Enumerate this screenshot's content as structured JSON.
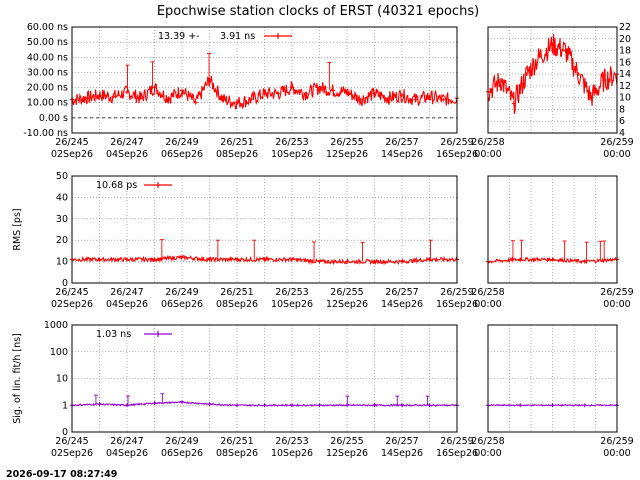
{
  "title": "Epochwise station clocks of ERST (40321 epochs)",
  "timestamp": "2026-09-17 08:27:49",
  "colors": {
    "clock": "#ff0000",
    "rms": "#ff0000",
    "sig": "#9400d3",
    "grid": "#808080"
  },
  "chart_data": [
    {
      "type": "line",
      "panel": "clock-main",
      "ylabel": "",
      "ylim": [
        -10,
        60
      ],
      "yticks": [
        "60.00 ns",
        "50.00 ns",
        "40.00 ns",
        "30.00 ns",
        "20.00 ns",
        "10.00 ns",
        "0.00  s",
        "-10.00 ns"
      ],
      "ytick_values": [
        60,
        50,
        40,
        30,
        20,
        10,
        0,
        -10
      ],
      "xlim": [
        245,
        259
      ],
      "xticks_top": [
        "26/245",
        "26/247",
        "26/249",
        "26/251",
        "26/253",
        "26/255",
        "26/257",
        "26/259"
      ],
      "xticks_bottom": [
        "02Sep26",
        "04Sep26",
        "06Sep26",
        "08Sep26",
        "10Sep26",
        "12Sep26",
        "14Sep26",
        "16Sep26"
      ],
      "legend": {
        "label": "13.39 +-",
        "value": "3.91 ns"
      },
      "x": [
        245.0,
        245.5,
        246.0,
        246.5,
        247.0,
        247.5,
        248.0,
        248.5,
        249.0,
        249.5,
        250.0,
        250.5,
        251.0,
        251.5,
        252.0,
        252.5,
        253.0,
        253.5,
        254.0,
        254.5,
        255.0,
        255.5,
        256.0,
        256.5,
        257.0,
        257.5,
        258.0,
        258.5,
        259.0
      ],
      "values": [
        12,
        13,
        15,
        14,
        17,
        13,
        20,
        13,
        18,
        10,
        25,
        12,
        10,
        12,
        16,
        16,
        20,
        16,
        20,
        18,
        17,
        12,
        16,
        13,
        15,
        12,
        14,
        12,
        13
      ]
    },
    {
      "type": "line",
      "panel": "clock-zoom",
      "ylim": [
        4,
        22
      ],
      "yticks": [
        "22",
        "20",
        "18",
        "16",
        "14",
        "12",
        "10",
        "8",
        "6",
        "4"
      ],
      "ytick_values": [
        22,
        20,
        18,
        16,
        14,
        12,
        10,
        8,
        6,
        4
      ],
      "xlim": [
        258,
        259
      ],
      "xticks_top": [
        "26/258",
        "26/259"
      ],
      "xticks_bottom": [
        "00:00",
        "00:00"
      ],
      "x": [
        258.0,
        258.1,
        258.2,
        258.3,
        258.4,
        258.5,
        258.6,
        258.7,
        258.8,
        258.9,
        259.0
      ],
      "values": [
        11,
        13,
        9,
        14,
        17,
        19,
        18,
        14,
        10,
        13,
        14
      ]
    },
    {
      "type": "line",
      "panel": "rms-main",
      "ylabel": "RMS [ps]",
      "ylim": [
        0,
        50
      ],
      "yticks": [
        "50",
        "40",
        "30",
        "20",
        "10",
        "0"
      ],
      "ytick_values": [
        50,
        40,
        30,
        20,
        10,
        0
      ],
      "xlim": [
        245,
        259
      ],
      "xticks_top": [
        "26/245",
        "26/247",
        "26/249",
        "26/251",
        "26/253",
        "26/255",
        "26/257",
        "26/259"
      ],
      "xticks_bottom": [
        "02Sep26",
        "04Sep26",
        "06Sep26",
        "08Sep26",
        "10Sep26",
        "12Sep26",
        "14Sep26",
        "16Sep26"
      ],
      "legend": {
        "label": "10.68 ps"
      },
      "x": [
        245.0,
        246.0,
        247.0,
        248.0,
        249.0,
        250.0,
        251.0,
        252.0,
        253.0,
        254.0,
        255.0,
        256.0,
        257.0,
        258.0,
        259.0
      ],
      "values": [
        11,
        11,
        11,
        11,
        12,
        11,
        11,
        11,
        11,
        10,
        10,
        10,
        10,
        11,
        11
      ]
    },
    {
      "type": "line",
      "panel": "rms-zoom",
      "xlim": [
        258,
        259
      ],
      "ylim": [
        0,
        50
      ],
      "xticks_top": [
        "26/258",
        "26/259"
      ],
      "xticks_bottom": [
        "00:00",
        "00:00"
      ],
      "x": [
        258.0,
        258.25,
        258.5,
        258.75,
        259.0
      ],
      "values": [
        10,
        11,
        11,
        10,
        11
      ]
    },
    {
      "type": "line",
      "panel": "sig-main",
      "ylabel": "Sig. of lin. fit/h [ns]",
      "ylim": [
        0.1,
        1000
      ],
      "yticks": [
        "1000",
        "100",
        "10",
        "1",
        "0"
      ],
      "xlim": [
        245,
        259
      ],
      "xticks_top": [
        "26/245",
        "26/247",
        "26/249",
        "26/251",
        "26/253",
        "26/255",
        "26/257",
        "26/259"
      ],
      "xticks_bottom": [
        "02Sep26",
        "04Sep26",
        "06Sep26",
        "08Sep26",
        "10Sep26",
        "12Sep26",
        "14Sep26",
        "16Sep26"
      ],
      "legend": {
        "label": "1.03 ns"
      },
      "x": [
        245.0,
        246.0,
        247.0,
        248.0,
        249.0,
        250.0,
        251.0,
        252.0,
        253.0,
        254.0,
        255.0,
        256.0,
        257.0,
        258.0,
        259.0
      ],
      "values": [
        1.0,
        1.1,
        1.0,
        1.2,
        1.3,
        1.1,
        1.0,
        1.0,
        1.0,
        1.0,
        1.0,
        1.0,
        1.0,
        1.0,
        1.0
      ]
    },
    {
      "type": "line",
      "panel": "sig-zoom",
      "xlim": [
        258,
        259
      ],
      "ylim": [
        0.1,
        1000
      ],
      "xticks_top": [
        "26/258",
        "26/259"
      ],
      "xticks_bottom": [
        "00:00",
        "00:00"
      ],
      "x": [
        258.0,
        258.25,
        258.5,
        258.75,
        259.0
      ],
      "values": [
        1.0,
        1.0,
        1.0,
        1.0,
        1.0
      ]
    }
  ]
}
